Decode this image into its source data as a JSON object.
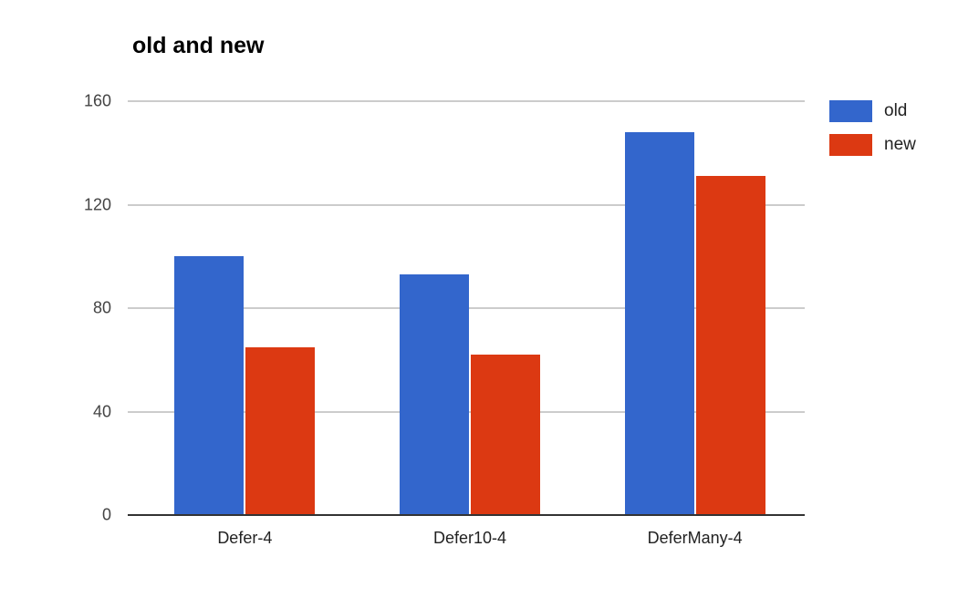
{
  "chart_data": {
    "type": "bar",
    "title": "old and new",
    "categories": [
      "Defer-4",
      "Defer10-4",
      "DeferMany-4"
    ],
    "series": [
      {
        "name": "old",
        "color": "#3366CC",
        "values": [
          100,
          93,
          148
        ]
      },
      {
        "name": "new",
        "color": "#DC3912",
        "values": [
          65,
          62,
          131
        ]
      }
    ],
    "xlabel": "",
    "ylabel": "",
    "ylim": [
      0,
      160
    ],
    "yticks": [
      0,
      40,
      80,
      120,
      160
    ],
    "grid": true,
    "legend_position": "right",
    "colors": {
      "gridline": "#cccccc",
      "axis_baseline": "#333333",
      "title_text": "#000000",
      "tick_text": "#444444",
      "category_text": "#222222",
      "background": "#ffffff"
    }
  }
}
